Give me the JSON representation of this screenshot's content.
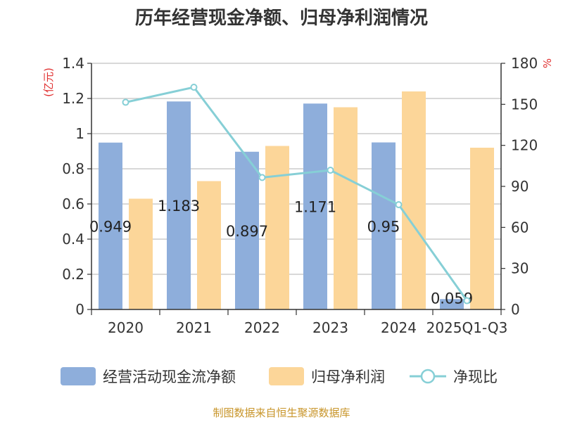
{
  "chart_data": {
    "type": "bar",
    "title": "历年经营现金净额、归母净利润情况",
    "categories": [
      "2020",
      "2021",
      "2022",
      "2023",
      "2024",
      "2025Q1-Q3"
    ],
    "y_left": {
      "unit": "(亿元)",
      "min": 0,
      "max": 1.4,
      "ticks": [
        "0",
        "0.2",
        "0.4",
        "0.6",
        "0.8",
        "1",
        "1.2",
        "1.4"
      ]
    },
    "y_right": {
      "unit": "%",
      "min": 0,
      "max": 180,
      "ticks": [
        "0",
        "30",
        "60",
        "90",
        "120",
        "150",
        "180"
      ]
    },
    "series": [
      {
        "name": "经营活动现金流净额",
        "type": "bar",
        "axis": "left",
        "color": "#8eaedb",
        "values": [
          0.949,
          1.183,
          0.897,
          1.171,
          0.95,
          0.059
        ],
        "labels": [
          "0.949",
          "1.183",
          "0.897",
          "1.171",
          "0.95",
          "0.059"
        ]
      },
      {
        "name": "归母净利润",
        "type": "bar",
        "axis": "left",
        "color": "#fcd699",
        "values": [
          0.63,
          0.73,
          0.93,
          1.15,
          1.24,
          0.92
        ]
      },
      {
        "name": "净现比",
        "type": "line",
        "axis": "right",
        "color": "#86cfd6",
        "values": [
          151.5,
          162.5,
          96.5,
          101.8,
          76.6,
          6.4
        ]
      }
    ],
    "grid": true,
    "legend_position": "bottom"
  },
  "source": "制图数据来自恒生聚源数据库"
}
